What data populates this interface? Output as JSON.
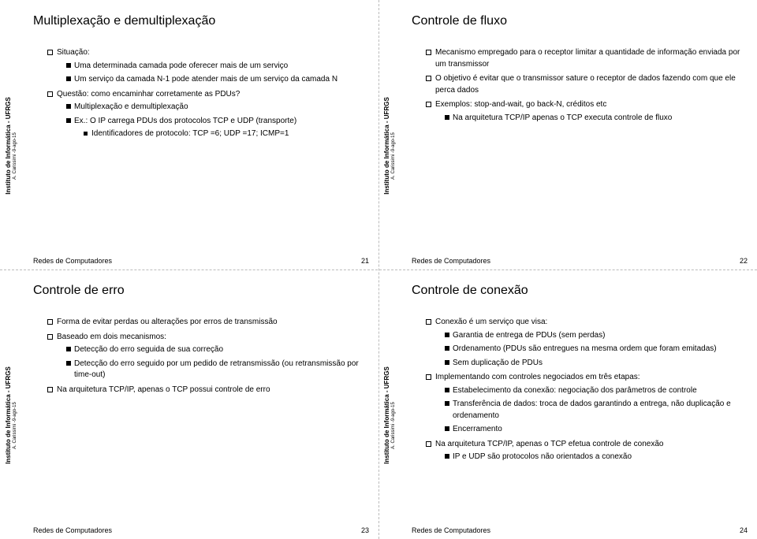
{
  "common": {
    "vlabel": "Instituto de Informática - UFRGS",
    "vsub": "A. Carissimi -9-ago-15",
    "footer_left": "Redes de Computadores"
  },
  "slides": {
    "s21": {
      "title": "Multiplexação e demultiplexação",
      "page": "21",
      "l1_0": "Situação:",
      "l2_0": "Uma determinada camada pode oferecer mais de um serviço",
      "l2_1": "Um serviço da camada N-1 pode atender mais de um serviço da camada N",
      "l1_1": "Questão: como encaminhar corretamente as PDUs?",
      "l2_2": "Multiplexação e demultiplexação",
      "l2_3": "Ex.: O IP carrega PDUs dos protocolos TCP e UDP (transporte)",
      "l3_0": "Identificadores de protocolo: TCP =6; UDP =17; ICMP=1"
    },
    "s22": {
      "title": "Controle de fluxo",
      "page": "22",
      "l1_0": "Mecanismo empregado para o receptor limitar a quantidade de informação enviada por um transmissor",
      "l1_1": "O objetivo é evitar que o transmissor sature o receptor de dados fazendo com que ele perca dados",
      "l1_2": "Exemplos: stop-and-wait, go back-N, créditos etc",
      "l2_0": "Na arquitetura TCP/IP apenas o TCP executa controle de fluxo"
    },
    "s23": {
      "title": "Controle de erro",
      "page": "23",
      "l1_0": "Forma de evitar perdas ou alterações por erros de transmissão",
      "l1_1": "Baseado em dois mecanismos:",
      "l2_0": "Detecção do erro seguida de sua correção",
      "l2_1": "Detecção do erro seguido por um pedido de retransmissão (ou retransmissão por time-out)",
      "l1_2": "Na arquitetura TCP/IP, apenas o TCP possui controle de erro"
    },
    "s24": {
      "title": "Controle de conexão",
      "page": "24",
      "l1_0": "Conexão é um serviço que visa:",
      "l2_0": "Garantia de entrega de PDUs (sem perdas)",
      "l2_1": "Ordenamento (PDUs são entregues na mesma ordem que foram emitadas)",
      "l2_2": "Sem duplicação de PDUs",
      "l1_1": "Implementando com controles negociados em três etapas:",
      "l2_3": "Estabelecimento da conexão: negociação dos parâmetros de controle",
      "l2_4": "Transferência de dados: troca de dados garantindo a entrega, não duplicação e ordenamento",
      "l2_5": "Encerramento",
      "l1_2": "Na arquitetura TCP/IP, apenas o TCP efetua controle de conexão",
      "l2_6": "IP e UDP são protocolos não orientados a conexão"
    }
  }
}
